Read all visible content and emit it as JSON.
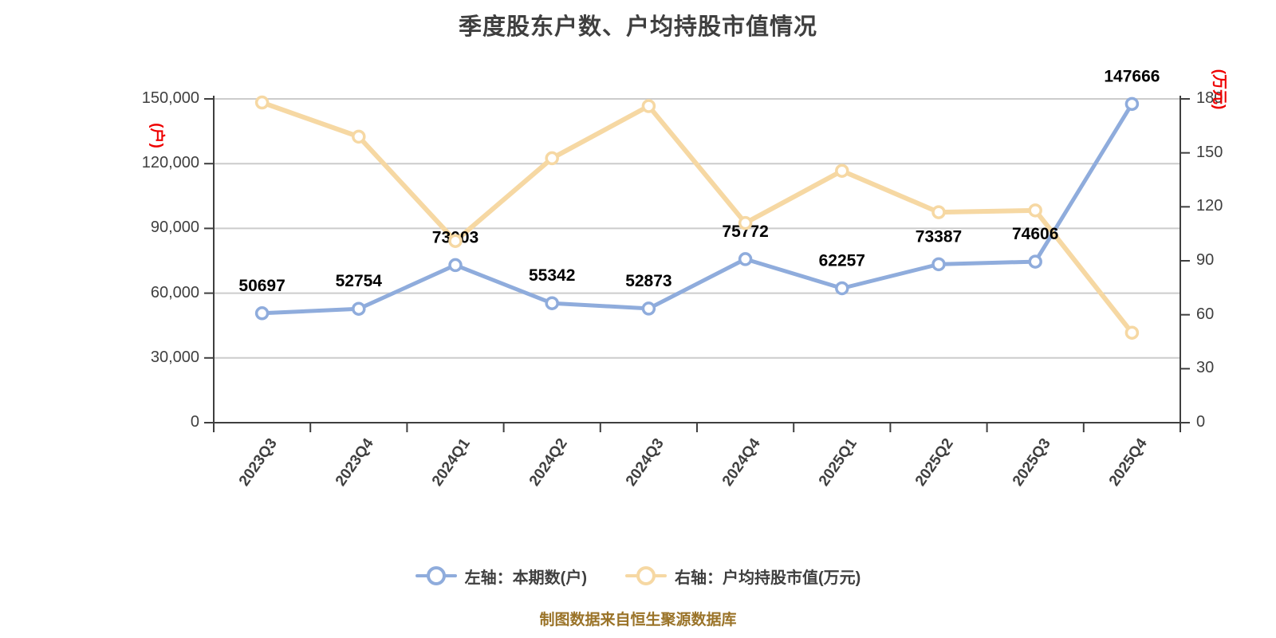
{
  "title": "季度股东户数、户均持股市值情况",
  "footer": {
    "source_note": "制图数据来自恒生聚源数据库"
  },
  "legend": {
    "items": [
      {
        "label": "左轴：本期数(户)",
        "color": "#8facdc"
      },
      {
        "label": "右轴：户均持股市值(万元)",
        "color": "#f6d8a3"
      }
    ]
  },
  "colors": {
    "blue_line": "#8facdc",
    "yellow_line": "#f6d8a3",
    "gridline": "#cccccc",
    "axis_line": "#3f3f3f",
    "tick_text": "#3f3f3f",
    "data_label": "#000000",
    "unit_label_red": "#ee0000",
    "footer_text": "#9a7328",
    "marker_fill": "#ffffff"
  },
  "chart_data": {
    "type": "line",
    "categories": [
      "2023Q3",
      "2023Q4",
      "2024Q1",
      "2024Q2",
      "2024Q3",
      "2024Q4",
      "2025Q1",
      "2025Q2",
      "2025Q3",
      "2025Q4"
    ],
    "series": [
      {
        "name": "左轴：本期数(户)",
        "axis": "left",
        "color": "#8facdc",
        "values": [
          50697,
          52754,
          73003,
          55342,
          52873,
          75772,
          62257,
          73387,
          74606,
          147666
        ],
        "show_labels": true
      },
      {
        "name": "右轴：户均持股市值(万元)",
        "axis": "right",
        "color": "#f6d8a3",
        "values": [
          178,
          159,
          101,
          147,
          176,
          111,
          140,
          117,
          118,
          50
        ],
        "show_labels": false
      }
    ],
    "left_axis": {
      "unit": "(户)",
      "min": 0,
      "max": 150000,
      "tick_values": [
        0,
        30000,
        60000,
        90000,
        120000,
        150000
      ],
      "tick_labels": [
        "0",
        "30,000",
        "60,000",
        "90,000",
        "120,000",
        "150,000"
      ]
    },
    "right_axis": {
      "unit": "(万元)",
      "min": 0,
      "max": 180,
      "tick_values": [
        0,
        30,
        60,
        90,
        120,
        150,
        180
      ],
      "tick_labels": [
        "0",
        "30",
        "60",
        "90",
        "120",
        "150",
        "180"
      ]
    },
    "grid": true,
    "legend_position": "bottom"
  }
}
